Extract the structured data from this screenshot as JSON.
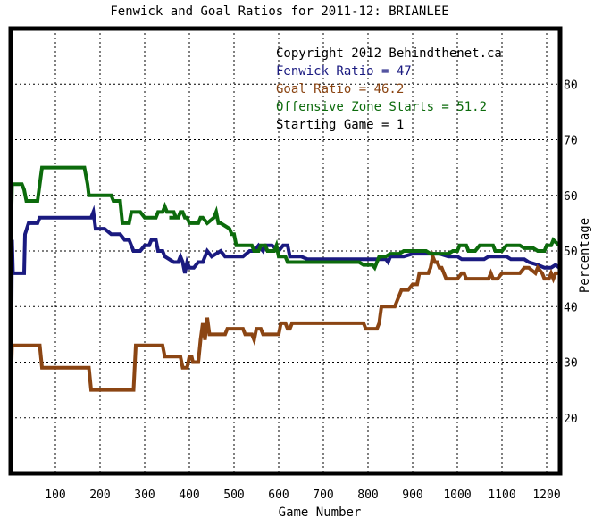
{
  "chart_data": {
    "type": "line",
    "title": "Fenwick and Goal Ratios for 2011-12: BRIANLEE",
    "xlabel": "Game Number",
    "ylabel": "Percentage",
    "xlim": [
      0,
      1230
    ],
    "ylim": [
      10,
      90
    ],
    "x_ticks": [
      100,
      200,
      300,
      400,
      500,
      600,
      700,
      800,
      900,
      1000,
      1100,
      1200
    ],
    "y_ticks": [
      20,
      30,
      40,
      50,
      60,
      70,
      80
    ],
    "y_axis_side": "right",
    "grid": true,
    "annotations": [
      {
        "text": "Copyright 2012 Behindthenet.ca",
        "color": "#000000"
      },
      {
        "text": "Fenwick Ratio = 47",
        "color": "#1a1a80"
      },
      {
        "text": "Goal Ratio = 46.2",
        "color": "#8b4513"
      },
      {
        "text": "Offensive Zone Starts = 51.2",
        "color": "#0c6b0c"
      },
      {
        "text": "Starting Game = 1",
        "color": "#000000"
      }
    ],
    "series": [
      {
        "color": "#1a1a80",
        "points": [
          [
            0,
            17
          ],
          [
            3,
            52
          ],
          [
            5,
            46
          ],
          [
            30,
            46
          ],
          [
            32,
            53
          ],
          [
            40,
            55
          ],
          [
            60,
            55
          ],
          [
            65,
            56
          ],
          [
            180,
            56
          ],
          [
            185,
            57
          ],
          [
            190,
            54
          ],
          [
            210,
            54
          ],
          [
            225,
            53
          ],
          [
            245,
            53
          ],
          [
            255,
            52
          ],
          [
            265,
            52
          ],
          [
            275,
            50
          ],
          [
            290,
            50
          ],
          [
            300,
            51
          ],
          [
            310,
            51
          ],
          [
            315,
            52
          ],
          [
            325,
            52
          ],
          [
            330,
            50
          ],
          [
            340,
            50
          ],
          [
            345,
            49
          ],
          [
            365,
            48
          ],
          [
            375,
            48
          ],
          [
            380,
            49
          ],
          [
            385,
            48
          ],
          [
            390,
            46
          ],
          [
            395,
            48
          ],
          [
            400,
            47
          ],
          [
            410,
            47
          ],
          [
            420,
            48
          ],
          [
            430,
            48
          ],
          [
            440,
            50
          ],
          [
            450,
            49
          ],
          [
            470,
            50
          ],
          [
            480,
            49
          ],
          [
            520,
            49
          ],
          [
            535,
            50
          ],
          [
            545,
            50
          ],
          [
            555,
            51
          ],
          [
            565,
            50
          ],
          [
            570,
            51
          ],
          [
            585,
            51
          ],
          [
            600,
            50
          ],
          [
            610,
            51
          ],
          [
            620,
            51
          ],
          [
            625,
            49
          ],
          [
            650,
            49
          ],
          [
            665,
            48.5
          ],
          [
            840,
            48.5
          ],
          [
            845,
            48
          ],
          [
            850,
            49
          ],
          [
            880,
            49
          ],
          [
            900,
            49.5
          ],
          [
            960,
            49.5
          ],
          [
            980,
            49
          ],
          [
            1000,
            49
          ],
          [
            1010,
            48.5
          ],
          [
            1060,
            48.5
          ],
          [
            1070,
            49
          ],
          [
            1110,
            49
          ],
          [
            1120,
            48.5
          ],
          [
            1150,
            48.5
          ],
          [
            1160,
            48
          ],
          [
            1180,
            47.5
          ],
          [
            1195,
            47
          ],
          [
            1210,
            47
          ],
          [
            1220,
            47.5
          ],
          [
            1228,
            47
          ]
        ]
      },
      {
        "color": "#8b4513",
        "points": [
          [
            0,
            25
          ],
          [
            3,
            33
          ],
          [
            10,
            33
          ],
          [
            15,
            33
          ],
          [
            65,
            33
          ],
          [
            70,
            29
          ],
          [
            175,
            29
          ],
          [
            180,
            25
          ],
          [
            275,
            25
          ],
          [
            280,
            33
          ],
          [
            340,
            33
          ],
          [
            345,
            31
          ],
          [
            380,
            31
          ],
          [
            385,
            29
          ],
          [
            395,
            29
          ],
          [
            400,
            31
          ],
          [
            405,
            31
          ],
          [
            408,
            30
          ],
          [
            420,
            30
          ],
          [
            425,
            34
          ],
          [
            430,
            37
          ],
          [
            435,
            34
          ],
          [
            440,
            38
          ],
          [
            445,
            35
          ],
          [
            480,
            35
          ],
          [
            485,
            36
          ],
          [
            520,
            36
          ],
          [
            525,
            35
          ],
          [
            540,
            35
          ],
          [
            545,
            34
          ],
          [
            550,
            36
          ],
          [
            560,
            36
          ],
          [
            565,
            35
          ],
          [
            600,
            35
          ],
          [
            605,
            37
          ],
          [
            615,
            37
          ],
          [
            620,
            36
          ],
          [
            625,
            36
          ],
          [
            630,
            37
          ],
          [
            790,
            37
          ],
          [
            795,
            36
          ],
          [
            820,
            36
          ],
          [
            825,
            37
          ],
          [
            830,
            40
          ],
          [
            860,
            40
          ],
          [
            870,
            42
          ],
          [
            875,
            43
          ],
          [
            880,
            43
          ],
          [
            890,
            43
          ],
          [
            900,
            44
          ],
          [
            910,
            44
          ],
          [
            915,
            46
          ],
          [
            935,
            46
          ],
          [
            940,
            47
          ],
          [
            945,
            49
          ],
          [
            950,
            48
          ],
          [
            955,
            48
          ],
          [
            960,
            47
          ],
          [
            965,
            47
          ],
          [
            970,
            46
          ],
          [
            975,
            45
          ],
          [
            1000,
            45
          ],
          [
            1010,
            46
          ],
          [
            1015,
            46
          ],
          [
            1020,
            45
          ],
          [
            1070,
            45
          ],
          [
            1075,
            46
          ],
          [
            1080,
            45
          ],
          [
            1090,
            45
          ],
          [
            1100,
            46
          ],
          [
            1140,
            46
          ],
          [
            1150,
            47
          ],
          [
            1160,
            47
          ],
          [
            1175,
            46
          ],
          [
            1180,
            47
          ],
          [
            1190,
            46
          ],
          [
            1195,
            45
          ],
          [
            1205,
            45
          ],
          [
            1210,
            46
          ],
          [
            1215,
            45
          ],
          [
            1220,
            46
          ],
          [
            1228,
            46
          ]
        ]
      },
      {
        "color": "#0c6b0c",
        "points": [
          [
            0,
            51
          ],
          [
            3,
            62
          ],
          [
            25,
            62
          ],
          [
            30,
            61
          ],
          [
            35,
            59
          ],
          [
            60,
            59
          ],
          [
            65,
            62
          ],
          [
            70,
            65
          ],
          [
            165,
            65
          ],
          [
            172,
            62
          ],
          [
            175,
            60
          ],
          [
            225,
            60
          ],
          [
            230,
            59
          ],
          [
            245,
            59
          ],
          [
            250,
            55
          ],
          [
            265,
            55
          ],
          [
            270,
            57
          ],
          [
            290,
            57
          ],
          [
            300,
            56
          ],
          [
            325,
            56
          ],
          [
            330,
            57
          ],
          [
            340,
            57
          ],
          [
            345,
            58
          ],
          [
            350,
            57
          ],
          [
            365,
            57
          ],
          [
            370,
            56
          ],
          [
            355,
            56
          ],
          [
            375,
            56
          ],
          [
            380,
            57
          ],
          [
            385,
            57
          ],
          [
            390,
            56
          ],
          [
            395,
            56
          ],
          [
            400,
            55
          ],
          [
            420,
            55
          ],
          [
            425,
            56
          ],
          [
            430,
            56
          ],
          [
            440,
            55
          ],
          [
            455,
            56
          ],
          [
            460,
            57
          ],
          [
            465,
            55
          ],
          [
            470,
            55
          ],
          [
            490,
            54
          ],
          [
            495,
            53
          ],
          [
            500,
            53
          ],
          [
            505,
            51
          ],
          [
            540,
            51
          ],
          [
            545,
            50
          ],
          [
            555,
            50
          ],
          [
            560,
            51
          ],
          [
            570,
            51
          ],
          [
            575,
            50
          ],
          [
            590,
            50
          ],
          [
            595,
            51
          ],
          [
            600,
            49
          ],
          [
            615,
            49
          ],
          [
            620,
            48
          ],
          [
            630,
            48
          ],
          [
            640,
            48
          ],
          [
            780,
            48
          ],
          [
            790,
            47.5
          ],
          [
            810,
            47.5
          ],
          [
            815,
            47
          ],
          [
            820,
            48
          ],
          [
            825,
            49
          ],
          [
            840,
            49
          ],
          [
            850,
            49.5
          ],
          [
            870,
            49.5
          ],
          [
            880,
            50
          ],
          [
            930,
            50
          ],
          [
            940,
            49.5
          ],
          [
            980,
            49.5
          ],
          [
            990,
            50
          ],
          [
            1000,
            50
          ],
          [
            1005,
            51
          ],
          [
            1020,
            51
          ],
          [
            1025,
            50
          ],
          [
            1040,
            50
          ],
          [
            1050,
            51
          ],
          [
            1080,
            51
          ],
          [
            1085,
            50
          ],
          [
            1100,
            50
          ],
          [
            1110,
            51
          ],
          [
            1140,
            51
          ],
          [
            1150,
            50.5
          ],
          [
            1170,
            50.5
          ],
          [
            1180,
            50
          ],
          [
            1195,
            50
          ],
          [
            1200,
            51
          ],
          [
            1210,
            51
          ],
          [
            1215,
            52
          ],
          [
            1228,
            51
          ]
        ]
      }
    ]
  }
}
